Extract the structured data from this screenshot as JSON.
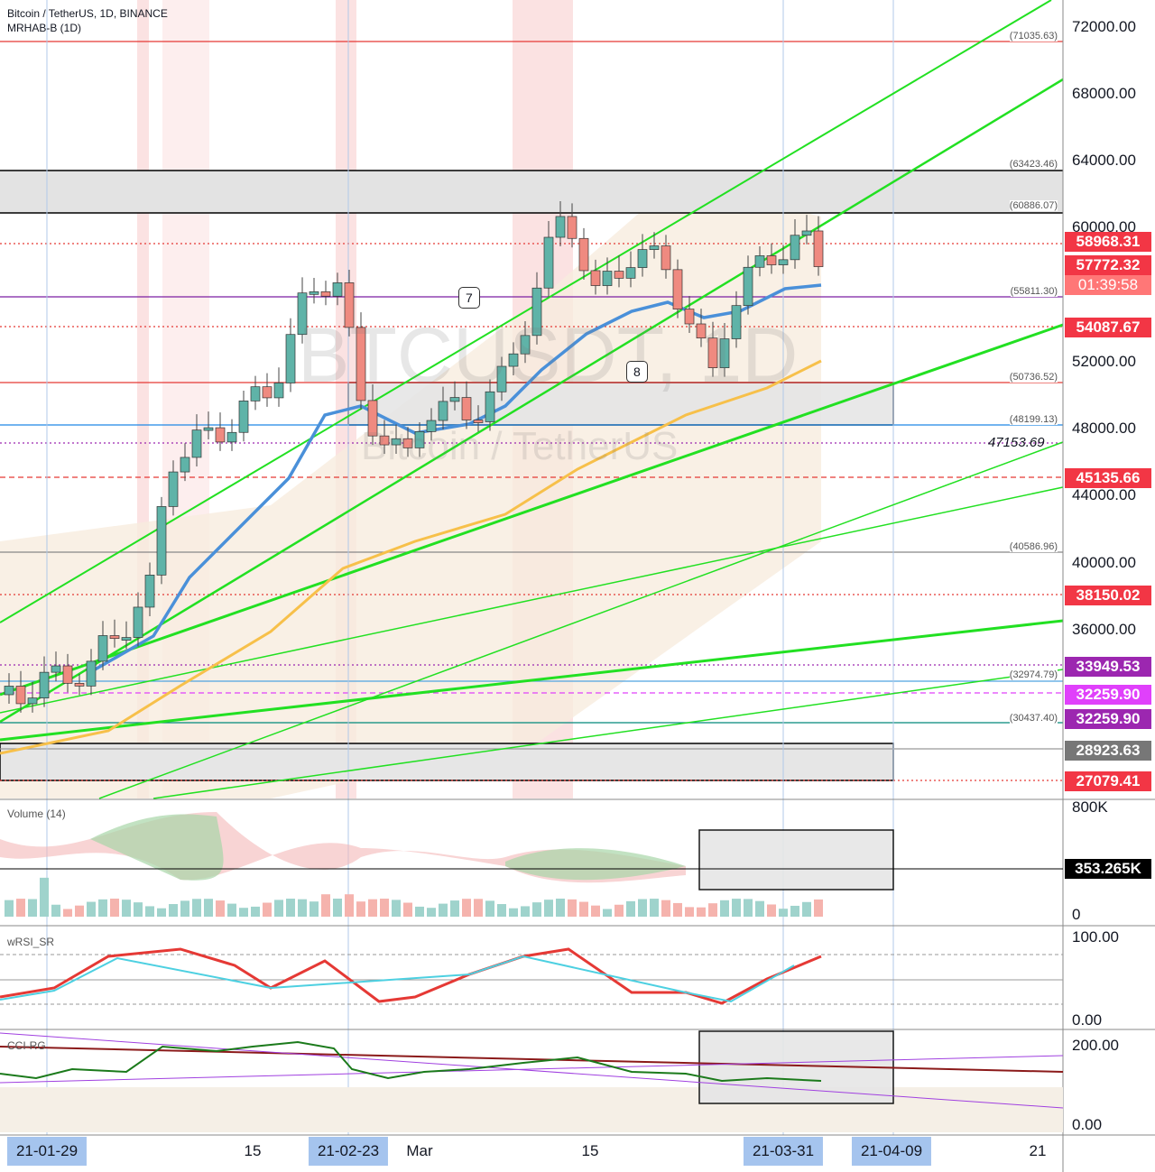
{
  "header": {
    "title": "Bitcoin / TetherUS, 1D, BINANCE",
    "indicator": "MRHAB-B (1D)"
  },
  "watermark": {
    "symbol": "BTCUSDT, 1D",
    "name": "Bitcoin / TetherUS"
  },
  "price_axis": [
    "72000.00",
    "68000.00",
    "64000.00",
    "60000.00",
    "52000.00",
    "48000.00",
    "44000.00",
    "40000.00",
    "36000.00"
  ],
  "levels": [
    "(71035.63)",
    "(63423.46)",
    "(60886.07)",
    "(55811.30)",
    "(50736.52)",
    "(48199.13)",
    "(40586.96)",
    "(32974.79)",
    "(30437.40)"
  ],
  "level_note": "47153.69",
  "price_tags": [
    "58968.31",
    "57772.32",
    "54087.67",
    "45135.66",
    "38150.02",
    "33949.53",
    "32259.90",
    "32259.90",
    "28923.63",
    "27079.41"
  ],
  "countdown": "01:39:58",
  "annotations": [
    "7",
    "8"
  ],
  "volume": {
    "label": "Volume (14)",
    "axis": [
      "800K",
      "0"
    ],
    "tag": "353.265K"
  },
  "wrsi": {
    "label": "wRSI_SR",
    "axis": [
      "100.00",
      "0.00"
    ]
  },
  "cci": {
    "label": "CCI-RG",
    "axis": [
      "200.00",
      "0.00"
    ]
  },
  "time_axis": [
    "21-01-29",
    "15",
    "21-02-23",
    "Mar",
    "15",
    "21-03-31",
    "21-04-09",
    "21"
  ]
}
